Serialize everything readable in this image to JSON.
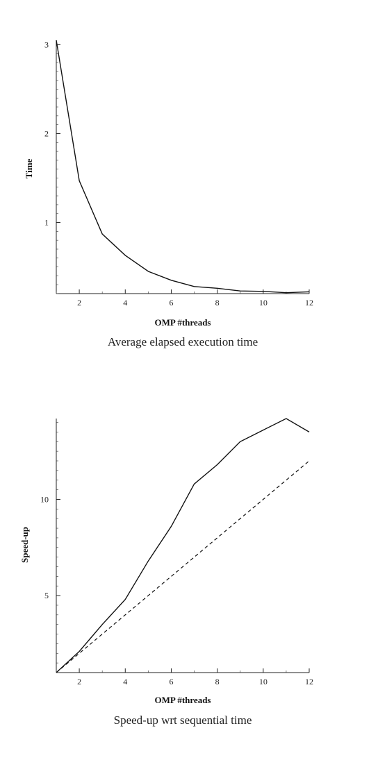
{
  "chart_data": [
    {
      "type": "line",
      "title": "",
      "caption": "Average elapsed execution time",
      "xlabel": "OMP #threads",
      "ylabel": "Time",
      "xlim": [
        1,
        12
      ],
      "ylim": [
        0.2,
        3.05
      ],
      "xticks": [
        2,
        4,
        6,
        8,
        10,
        12
      ],
      "yticks": [
        1,
        2,
        3
      ],
      "grid": false,
      "series": [
        {
          "style": "solid",
          "x": [
            1,
            2,
            3,
            4,
            5,
            6,
            7,
            8,
            9,
            10,
            11,
            12
          ],
          "y": [
            3.05,
            1.47,
            0.87,
            0.63,
            0.45,
            0.35,
            0.28,
            0.26,
            0.23,
            0.225,
            0.21,
            0.22
          ]
        }
      ]
    },
    {
      "type": "line",
      "title": "",
      "caption": "Speed-up wrt sequential time",
      "xlabel": "OMP #threads",
      "ylabel": "Speed-up",
      "xlim": [
        1,
        12
      ],
      "ylim": [
        1,
        14.2
      ],
      "xticks": [
        2,
        4,
        6,
        8,
        10,
        12
      ],
      "yticks": [
        5,
        10
      ],
      "grid": false,
      "series": [
        {
          "style": "solid",
          "x": [
            1,
            2,
            3,
            4,
            5,
            6,
            7,
            8,
            9,
            10,
            11,
            12
          ],
          "y": [
            1,
            2.1,
            3.5,
            4.8,
            6.8,
            8.6,
            10.8,
            11.8,
            13.0,
            13.6,
            14.2,
            13.5
          ]
        },
        {
          "style": "dashed",
          "x": [
            1,
            12
          ],
          "y": [
            1,
            12
          ]
        }
      ]
    }
  ]
}
